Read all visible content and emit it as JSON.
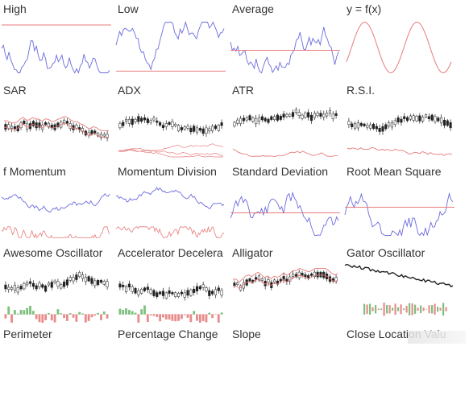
{
  "colors": {
    "primary": "#6b6bdd",
    "secondary": "#e87b7b",
    "candle": "#222222",
    "bull": "#7ec07e",
    "bear": "#e88b8b"
  },
  "indicators": [
    {
      "label": "High",
      "kind": "line_hline",
      "seed": 1,
      "hline": 0.1
    },
    {
      "label": "Low",
      "kind": "line_hline",
      "seed": 2,
      "hline": 0.92
    },
    {
      "label": "Average",
      "kind": "line_hline",
      "seed": 3,
      "hline": 0.55
    },
    {
      "label": "y = f(x)",
      "kind": "sine",
      "seed": 4
    },
    {
      "label": "SAR",
      "kind": "candles_bands",
      "seed": 5
    },
    {
      "label": "ADX",
      "kind": "candles_osc3",
      "seed": 6
    },
    {
      "label": "ATR",
      "kind": "candles_osc1",
      "seed": 7
    },
    {
      "label": "R.S.I.",
      "kind": "candles_osc1",
      "seed": 8
    },
    {
      "label": "f Momentum",
      "kind": "two_lines",
      "seed": 9
    },
    {
      "label": "Momentum Division",
      "kind": "two_lines",
      "seed": 10
    },
    {
      "label": "Standard Deviation",
      "kind": "line_hline",
      "seed": 11,
      "hline": 0.55
    },
    {
      "label": "Root Mean Square",
      "kind": "line_hline",
      "seed": 12,
      "hline": 0.45
    },
    {
      "label": "Awesome Oscillator",
      "kind": "candles_hist",
      "seed": 13
    },
    {
      "label": "Accelerator Decelera",
      "kind": "candles_hist",
      "seed": 14
    },
    {
      "label": "Alligator",
      "kind": "candles_bands",
      "seed": 15
    },
    {
      "label": "Gator Oscillator",
      "kind": "decay_hist",
      "seed": 16
    },
    {
      "label": "Perimeter",
      "kind": "empty",
      "seed": 17
    },
    {
      "label": "Percentage Change",
      "kind": "empty",
      "seed": 18
    },
    {
      "label": "Slope",
      "kind": "empty",
      "seed": 19
    },
    {
      "label": "Close Location Valu",
      "kind": "empty",
      "seed": 20
    }
  ]
}
